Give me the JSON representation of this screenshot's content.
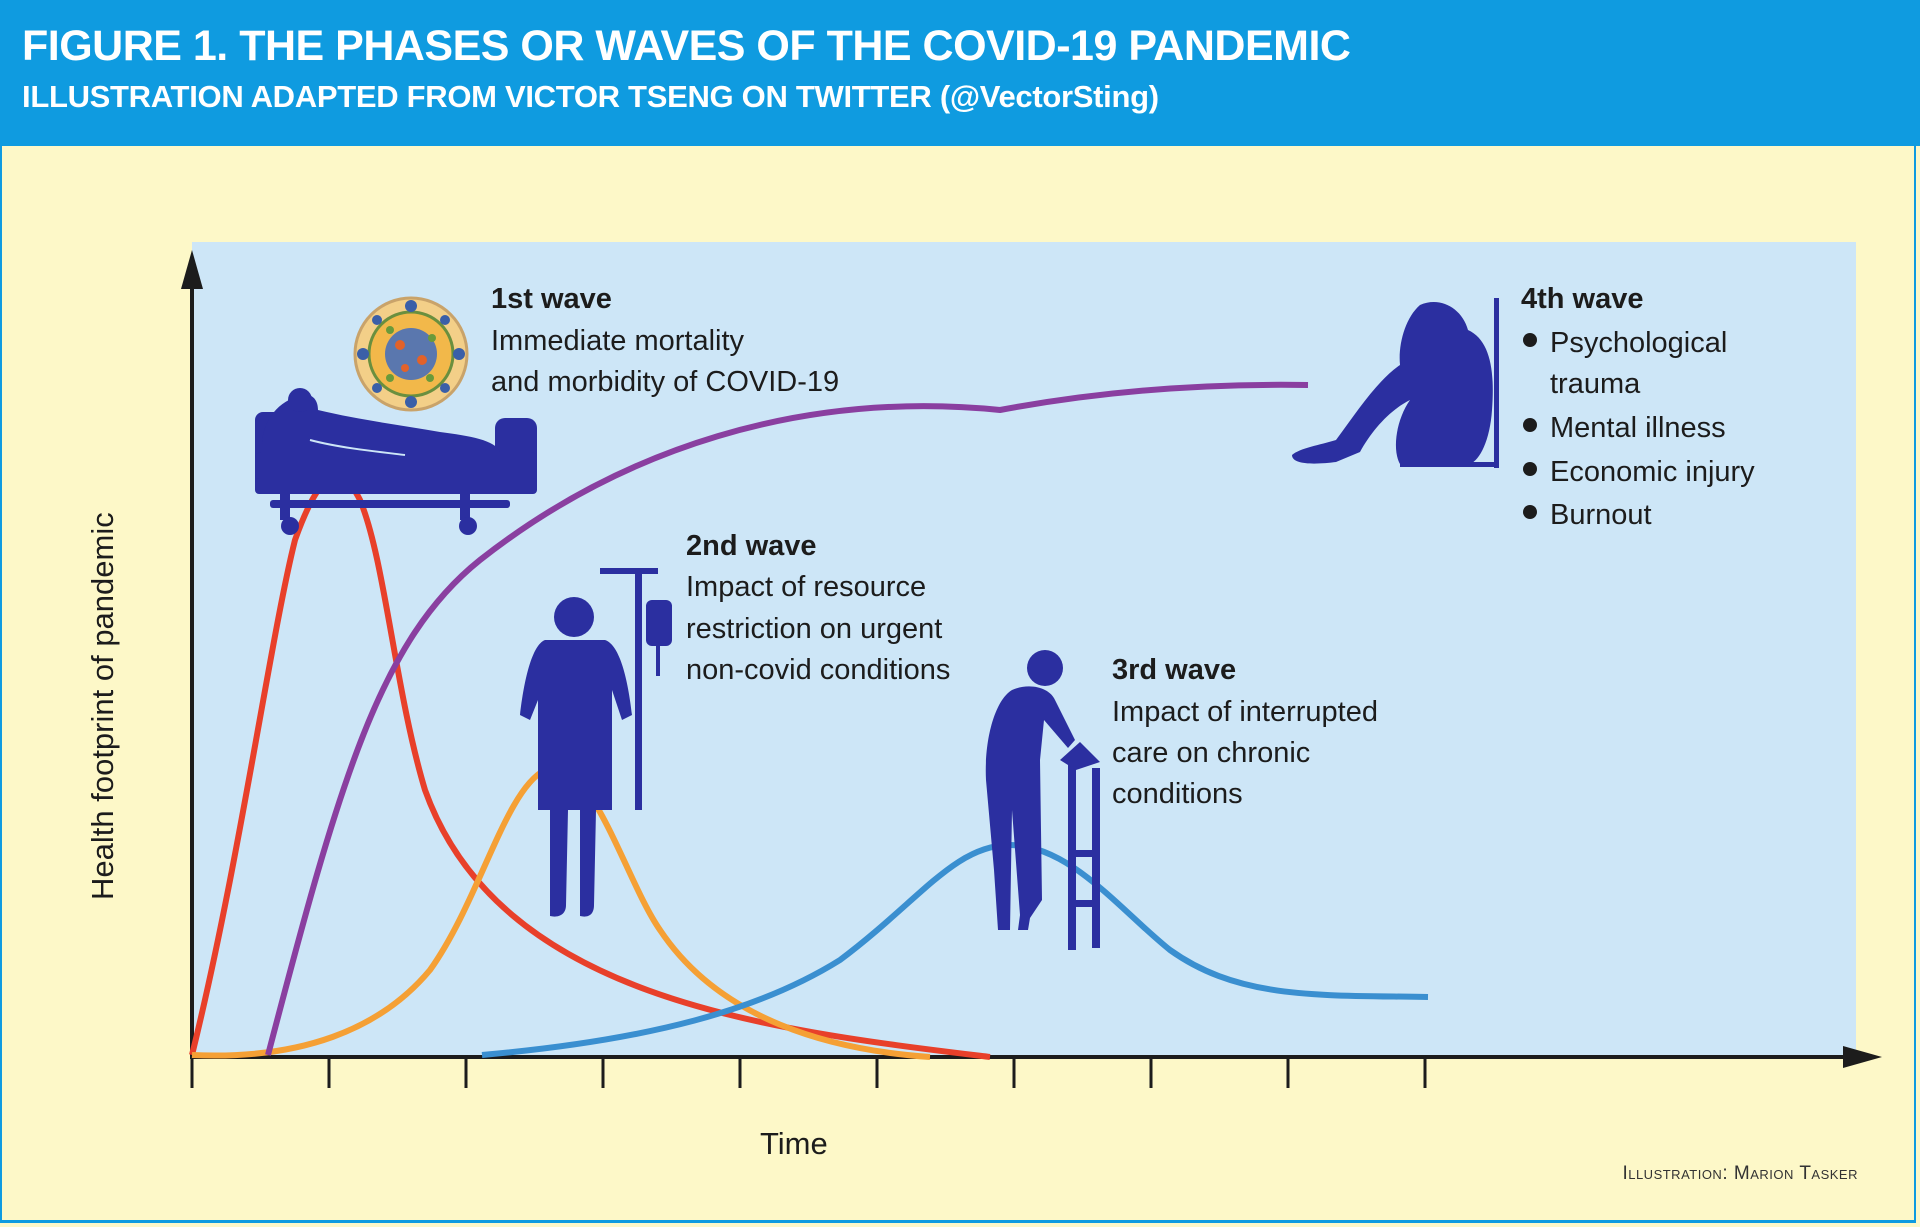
{
  "header": {
    "title": "FIGURE 1. THE PHASES OR WAVES OF THE COVID-19 PANDEMIC",
    "subtitle": "ILLUSTRATION ADAPTED FROM VICTOR TSENG ON TWITTER (@VectorSting)"
  },
  "axes": {
    "ylabel": "Health footprint of pandemic",
    "xlabel": "Time"
  },
  "waves": {
    "first": {
      "title": "1st wave",
      "lines": [
        "Immediate mortality",
        "and morbidity of COVID-19"
      ]
    },
    "second": {
      "title": "2nd wave",
      "lines": [
        "Impact of resource",
        "restriction on urgent",
        "non-covid conditions"
      ]
    },
    "third": {
      "title": "3rd wave",
      "lines": [
        "Impact of interrupted",
        "care on chronic",
        "conditions"
      ]
    },
    "fourth": {
      "title": "4th wave",
      "bullets": [
        "Psychological",
        "trauma",
        "Mental illness",
        "Economic injury",
        "Burnout"
      ]
    }
  },
  "credit": "Illustration: Marion Tasker",
  "colors": {
    "header": "#0f9be0",
    "background": "#fdf8c8",
    "plot": "#cde6f7",
    "wave1": "#e8402a",
    "wave2": "#f5a035",
    "wave3": "#3a8fd0",
    "wave4": "#8a3fa0",
    "figures": "#2b2fa0"
  },
  "icons": [
    "virus-icon",
    "hospital-bed-patient-icon",
    "iv-drip-patient-icon",
    "walker-elderly-icon",
    "distressed-person-icon"
  ]
}
